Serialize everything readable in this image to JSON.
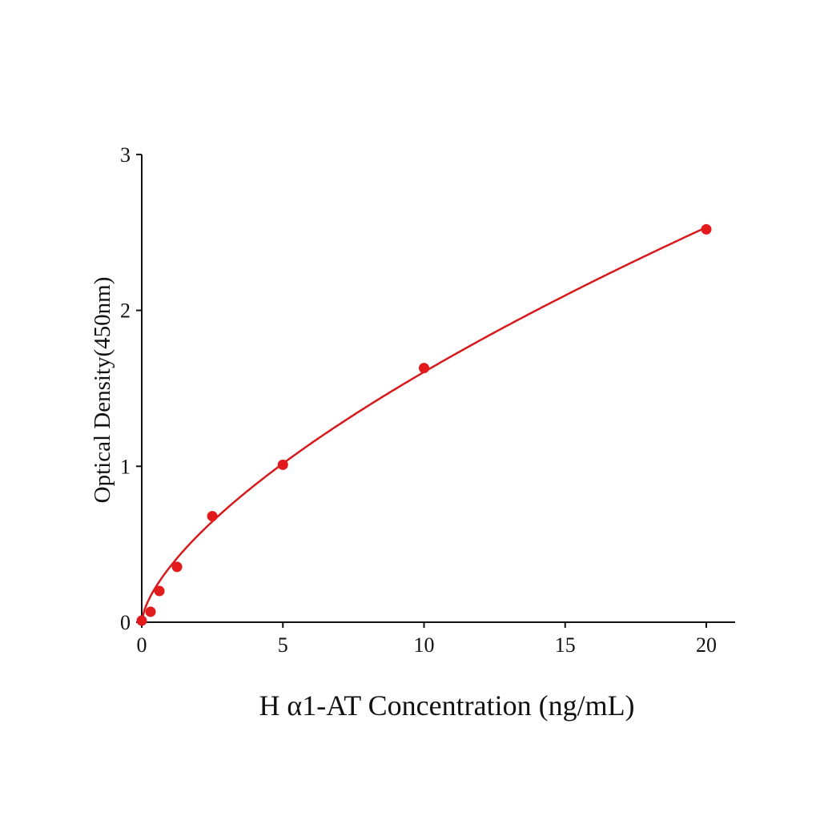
{
  "chart_data": {
    "type": "scatter",
    "title": "",
    "xlabel": "H α1-AT Concentration (ng/mL)",
    "ylabel": "Optical Density(450nm)",
    "xlim": [
      0,
      21
    ],
    "ylim": [
      0,
      3
    ],
    "xticks": [
      "0",
      "5",
      "10",
      "15",
      "20"
    ],
    "yticks": [
      "0",
      "1",
      "2",
      "3"
    ],
    "grid": false,
    "legend": "none",
    "series": [
      {
        "x": [
          0,
          0.3125,
          0.625,
          1.25,
          2.5,
          5,
          10,
          20
        ],
        "y": [
          0.01,
          0.067,
          0.2,
          0.355,
          0.68,
          1.01,
          1.63,
          2.52
        ],
        "color": "#e31a1c",
        "fit_line": true
      }
    ]
  }
}
